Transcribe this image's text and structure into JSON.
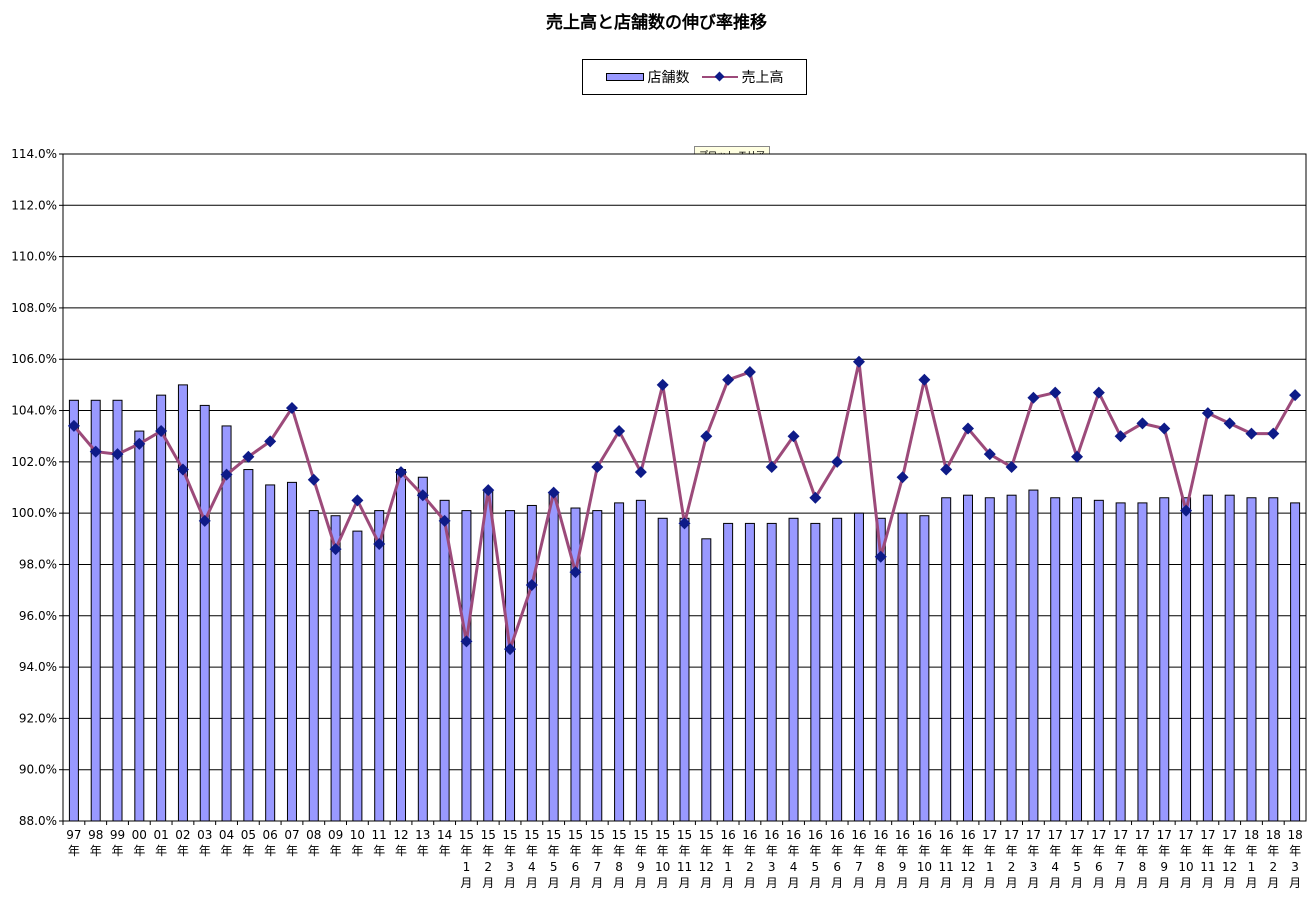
{
  "title": "売上高と店舗数の伸び率推移",
  "legend": {
    "bar_label": "店舗数",
    "line_label": "売上高"
  },
  "tooltip": "プロット エリア",
  "colors": {
    "bar": "#9999ff",
    "line": "#9c4a7a",
    "marker": "#0e1b88",
    "grid": "#000000"
  },
  "chart_data": {
    "type": "bar",
    "ylim": [
      88.0,
      114.0
    ],
    "yticks": [
      "114.0%",
      "112.0%",
      "110.0%",
      "108.0%",
      "106.0%",
      "104.0%",
      "102.0%",
      "100.0%",
      "98.0%",
      "96.0%",
      "94.0%",
      "92.0%",
      "90.0%",
      "88.0%"
    ],
    "categories": [
      [
        "97",
        "年"
      ],
      [
        "98",
        "年"
      ],
      [
        "99",
        "年"
      ],
      [
        "00",
        "年"
      ],
      [
        "01",
        "年"
      ],
      [
        "02",
        "年"
      ],
      [
        "03",
        "年"
      ],
      [
        "04",
        "年"
      ],
      [
        "05",
        "年"
      ],
      [
        "06",
        "年"
      ],
      [
        "07",
        "年"
      ],
      [
        "08",
        "年"
      ],
      [
        "09",
        "年"
      ],
      [
        "10",
        "年"
      ],
      [
        "11",
        "年"
      ],
      [
        "12",
        "年"
      ],
      [
        "13",
        "年"
      ],
      [
        "14",
        "年"
      ],
      [
        "15",
        "年",
        "1",
        "月"
      ],
      [
        "15",
        "年",
        "2",
        "月"
      ],
      [
        "15",
        "年",
        "3",
        "月"
      ],
      [
        "15",
        "年",
        "4",
        "月"
      ],
      [
        "15",
        "年",
        "5",
        "月"
      ],
      [
        "15",
        "年",
        "6",
        "月"
      ],
      [
        "15",
        "年",
        "7",
        "月"
      ],
      [
        "15",
        "年",
        "8",
        "月"
      ],
      [
        "15",
        "年",
        "9",
        "月"
      ],
      [
        "15",
        "年",
        "10",
        "月"
      ],
      [
        "15",
        "年",
        "11",
        "月"
      ],
      [
        "15",
        "年",
        "12",
        "月"
      ],
      [
        "16",
        "年",
        "1",
        "月"
      ],
      [
        "16",
        "年",
        "2",
        "月"
      ],
      [
        "16",
        "年",
        "3",
        "月"
      ],
      [
        "16",
        "年",
        "4",
        "月"
      ],
      [
        "16",
        "年",
        "5",
        "月"
      ],
      [
        "16",
        "年",
        "6",
        "月"
      ],
      [
        "16",
        "年",
        "7",
        "月"
      ],
      [
        "16",
        "年",
        "8",
        "月"
      ],
      [
        "16",
        "年",
        "9",
        "月"
      ],
      [
        "16",
        "年",
        "10",
        "月"
      ],
      [
        "16",
        "年",
        "11",
        "月"
      ],
      [
        "16",
        "年",
        "12",
        "月"
      ],
      [
        "17",
        "年",
        "1",
        "月"
      ],
      [
        "17",
        "年",
        "2",
        "月"
      ],
      [
        "17",
        "年",
        "3",
        "月"
      ],
      [
        "17",
        "年",
        "4",
        "月"
      ],
      [
        "17",
        "年",
        "5",
        "月"
      ],
      [
        "17",
        "年",
        "6",
        "月"
      ],
      [
        "17",
        "年",
        "7",
        "月"
      ],
      [
        "17",
        "年",
        "8",
        "月"
      ],
      [
        "17",
        "年",
        "9",
        "月"
      ],
      [
        "17",
        "年",
        "10",
        "月"
      ],
      [
        "17",
        "年",
        "11",
        "月"
      ],
      [
        "17",
        "年",
        "12",
        "月"
      ],
      [
        "18",
        "年",
        "1",
        "月"
      ],
      [
        "18",
        "年",
        "2",
        "月"
      ],
      [
        "18",
        "年",
        "3",
        "月"
      ]
    ],
    "series": [
      {
        "name": "店舗数",
        "type": "bar",
        "values": [
          104.4,
          104.4,
          104.4,
          103.2,
          104.6,
          105.0,
          104.2,
          103.4,
          101.7,
          101.1,
          101.2,
          100.1,
          99.9,
          99.3,
          100.1,
          101.7,
          101.4,
          100.5,
          100.1,
          100.9,
          100.1,
          100.3,
          100.8,
          100.2,
          100.1,
          100.4,
          100.5,
          99.8,
          99.8,
          99.0,
          99.6,
          99.6,
          99.6,
          99.8,
          99.6,
          99.8,
          100.0,
          99.8,
          100.0,
          99.9,
          100.6,
          100.7,
          100.6,
          100.7,
          100.9,
          100.6,
          100.6,
          100.5,
          100.4,
          100.4,
          100.6,
          100.6,
          100.7,
          100.7,
          100.6,
          100.6,
          100.4
        ]
      },
      {
        "name": "売上高",
        "type": "line",
        "values": [
          103.4,
          102.4,
          102.3,
          102.7,
          103.2,
          101.7,
          99.7,
          101.5,
          102.2,
          102.8,
          104.1,
          101.3,
          98.6,
          100.5,
          98.8,
          101.6,
          100.7,
          99.7,
          95.0,
          100.9,
          94.7,
          97.2,
          100.8,
          97.7,
          101.8,
          103.2,
          101.6,
          105.0,
          99.6,
          103.0,
          105.2,
          105.5,
          101.8,
          103.0,
          100.6,
          102.0,
          105.9,
          98.3,
          101.4,
          105.2,
          101.7,
          103.3,
          102.3,
          101.8,
          104.5,
          104.7,
          102.2,
          104.7,
          103.0,
          103.5,
          103.3,
          100.1,
          103.9,
          103.5,
          103.1,
          103.1,
          104.6
        ]
      }
    ]
  }
}
